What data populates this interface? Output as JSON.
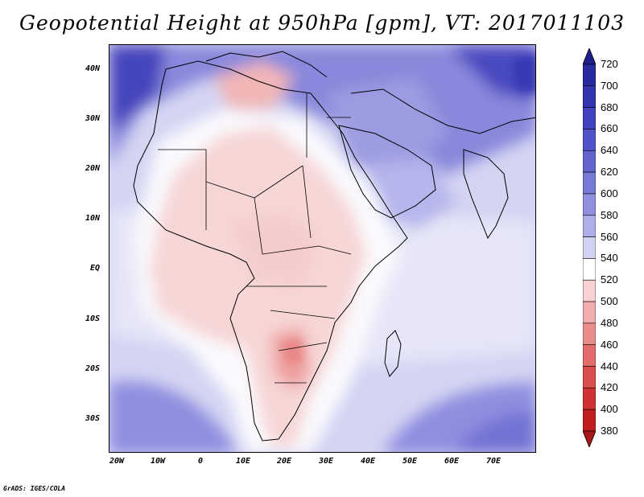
{
  "title": "Geopotential Height at 950hPa [gpm], VT: 2017011103",
  "map": {
    "lat_labels": [
      "40N",
      "30N",
      "20N",
      "10N",
      "EQ",
      "10S",
      "20S",
      "30S"
    ],
    "lon_labels": [
      "20W",
      "10W",
      "0",
      "10E",
      "20E",
      "30E",
      "40E",
      "50E",
      "60E",
      "70E"
    ]
  },
  "colorbar": {
    "levels": [
      "720",
      "700",
      "680",
      "660",
      "640",
      "620",
      "600",
      "580",
      "560",
      "540",
      "520",
      "500",
      "480",
      "460",
      "440",
      "420",
      "400",
      "380"
    ],
    "colors": [
      "#1f1f8c",
      "#2a2aa0",
      "#3434b0",
      "#4242c0",
      "#5252c8",
      "#6464cf",
      "#7878d6",
      "#9090de",
      "#aeaee8",
      "#d2d2f2",
      "#ffffff",
      "#f8d2d2",
      "#f1adad",
      "#ea8c8c",
      "#e26c6c",
      "#da4e4e",
      "#cf3232",
      "#c11f1f",
      "#a81818"
    ]
  },
  "credit": "GrADS: IGES/COLA"
}
